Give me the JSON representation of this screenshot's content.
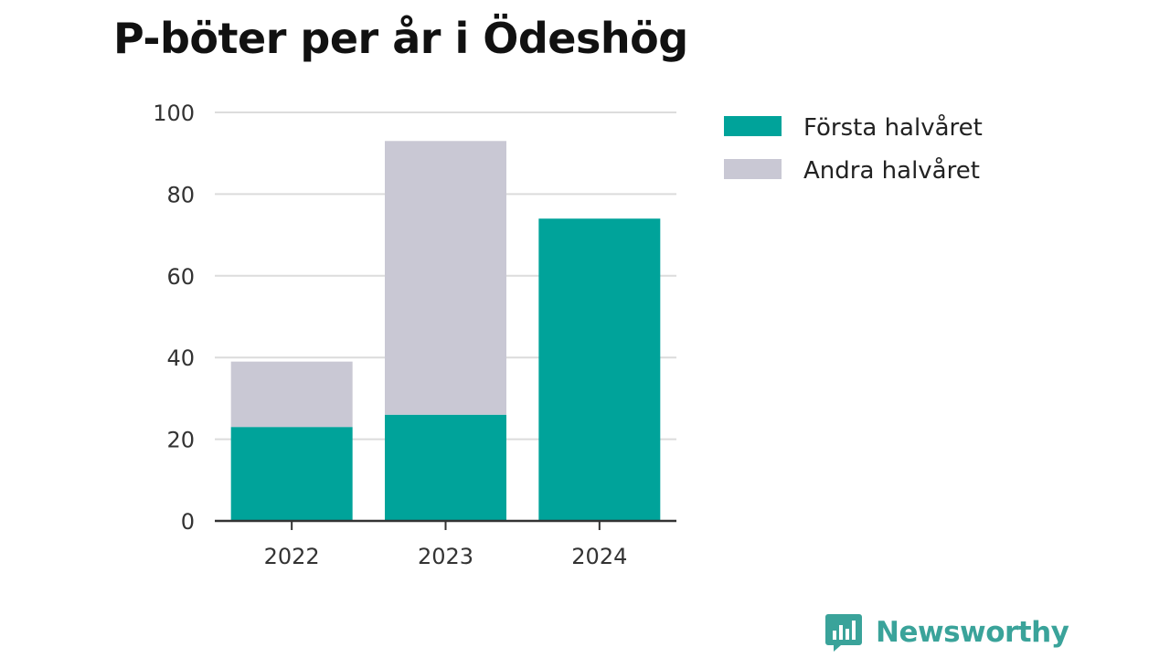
{
  "chart_data": {
    "type": "bar",
    "stacked": true,
    "title": "P-böter per år i Ödeshög",
    "xlabel": "",
    "ylabel": "",
    "categories": [
      "2022",
      "2023",
      "2024"
    ],
    "series": [
      {
        "name": "Första halvåret",
        "color": "#00a39a",
        "values": [
          23,
          26,
          74
        ]
      },
      {
        "name": "Andra halvåret",
        "color": "#c9c8d4",
        "values": [
          16,
          67,
          0
        ]
      }
    ],
    "ylim": [
      0,
      100
    ],
    "yticks": [
      0,
      20,
      40,
      60,
      80,
      100
    ],
    "grid": true,
    "legend_position": "right"
  },
  "brand": {
    "name": "Newsworthy",
    "icon": "newsworthy-logo-icon",
    "color": "#3aa39a"
  }
}
